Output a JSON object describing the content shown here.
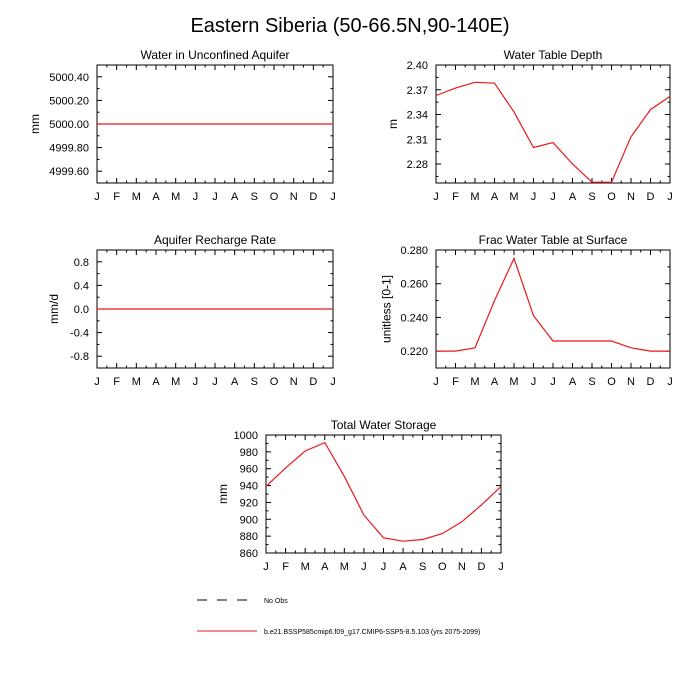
{
  "figure": {
    "title": "Eastern Siberia (50-66.5N,90-140E)"
  },
  "chart_data": [
    {
      "type": "line",
      "title": "Water in Unconfined Aquifer",
      "ylabel": "mm",
      "xlabel": "",
      "categories": [
        "J",
        "F",
        "M",
        "A",
        "M",
        "J",
        "J",
        "A",
        "S",
        "O",
        "N",
        "D",
        "J"
      ],
      "ylim": [
        4999.5,
        5000.5
      ],
      "yticks": [
        4999.6,
        4999.8,
        5000.0,
        5000.2,
        5000.4
      ],
      "ytick_labels": [
        "4999.60",
        "4999.80",
        "5000.00",
        "5000.20",
        "5000.40"
      ],
      "series": [
        {
          "name": "b.e21.BSSP585cmip6.f09_g17.CMIP6-SSP5-8.5.103 (yrs 2075-2099)",
          "values": [
            5000,
            5000,
            5000,
            5000,
            5000,
            5000,
            5000,
            5000,
            5000,
            5000,
            5000,
            5000,
            5000
          ]
        }
      ]
    },
    {
      "type": "line",
      "title": "Water Table Depth",
      "ylabel": "m",
      "xlabel": "",
      "categories": [
        "J",
        "F",
        "M",
        "A",
        "M",
        "J",
        "J",
        "A",
        "S",
        "O",
        "N",
        "D",
        "J"
      ],
      "ylim": [
        2.257,
        2.4
      ],
      "yticks": [
        2.28,
        2.31,
        2.34,
        2.37,
        2.4
      ],
      "ytick_labels": [
        "2.28",
        "2.31",
        "2.34",
        "2.37",
        "2.40"
      ],
      "series": [
        {
          "name": "b.e21.BSSP585cmip6.f09_g17.CMIP6-SSP5-8.5.103 (yrs 2075-2099)",
          "values": [
            2.363,
            2.372,
            2.379,
            2.378,
            2.343,
            2.3,
            2.306,
            2.28,
            2.258,
            2.258,
            2.313,
            2.346,
            2.362
          ]
        }
      ]
    },
    {
      "type": "line",
      "title": "Aquifer Recharge Rate",
      "ylabel": "mm/d",
      "xlabel": "",
      "categories": [
        "J",
        "F",
        "M",
        "A",
        "M",
        "J",
        "J",
        "A",
        "S",
        "O",
        "N",
        "D",
        "J"
      ],
      "ylim": [
        -1.0,
        1.0
      ],
      "yticks": [
        -0.8,
        -0.4,
        0.0,
        0.4,
        0.8
      ],
      "ytick_labels": [
        "-0.8",
        "-0.4",
        "0.0",
        "0.4",
        "0.8"
      ],
      "series": [
        {
          "name": "b.e21.BSSP585cmip6.f09_g17.CMIP6-SSP5-8.5.103 (yrs 2075-2099)",
          "values": [
            0,
            0,
            0,
            0,
            0,
            0,
            0,
            0,
            0,
            0,
            0,
            0,
            0
          ]
        }
      ]
    },
    {
      "type": "line",
      "title": "Frac Water Table at Surface",
      "ylabel": "unitless [0-1]",
      "xlabel": "",
      "categories": [
        "J",
        "F",
        "M",
        "A",
        "M",
        "J",
        "J",
        "A",
        "S",
        "O",
        "N",
        "D",
        "J"
      ],
      "ylim": [
        0.21,
        0.28
      ],
      "yticks": [
        0.22,
        0.24,
        0.26,
        0.28
      ],
      "ytick_labels": [
        "0.220",
        "0.240",
        "0.260",
        "0.280"
      ],
      "series": [
        {
          "name": "b.e21.BSSP585cmip6.f09_g17.CMIP6-SSP5-8.5.103 (yrs 2075-2099)",
          "values": [
            0.22,
            0.22,
            0.222,
            0.25,
            0.275,
            0.241,
            0.226,
            0.226,
            0.226,
            0.226,
            0.222,
            0.22,
            0.22
          ]
        }
      ]
    },
    {
      "type": "line",
      "title": "Total Water Storage",
      "ylabel": "mm",
      "xlabel": "",
      "categories": [
        "J",
        "F",
        "M",
        "A",
        "M",
        "J",
        "J",
        "A",
        "S",
        "O",
        "N",
        "D",
        "J"
      ],
      "ylim": [
        860,
        1000
      ],
      "yticks": [
        860,
        880,
        900,
        920,
        940,
        960,
        980,
        1000
      ],
      "ytick_labels": [
        "860",
        "880",
        "900",
        "920",
        "940",
        "960",
        "980",
        "1000"
      ],
      "series": [
        {
          "name": "b.e21.BSSP585cmip6.f09_g17.CMIP6-SSP5-8.5.103 (yrs 2075-2099)",
          "values": [
            939,
            961,
            981,
            991,
            951,
            905,
            878,
            874,
            876,
            883,
            897,
            917,
            939
          ]
        }
      ]
    }
  ],
  "legend": {
    "obs_label": "No Obs",
    "model_label": "b.e21.BSSP585cmip6.f09_g17.CMIP6-SSP5-8.5.103 (yrs 2075-2099)",
    "model_color": "#e8191b",
    "obs_color": "#000000"
  },
  "colors": {
    "line": "#e8191b",
    "axis": "#000000"
  }
}
